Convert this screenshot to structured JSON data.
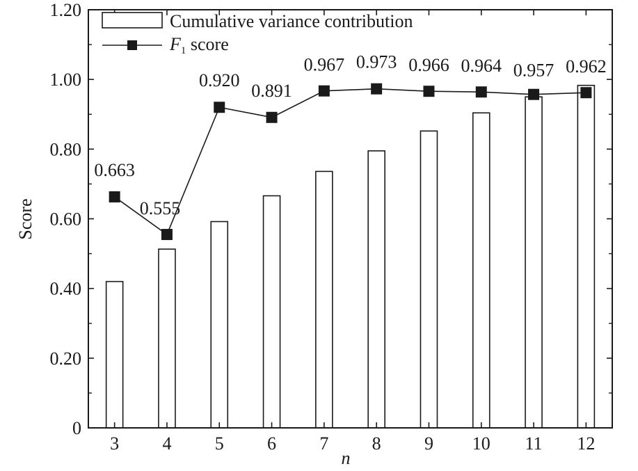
{
  "chart_data": {
    "type": "bar",
    "xlabel": "n",
    "ylabel": "Score",
    "ylim": [
      0,
      1.2
    ],
    "yticks": [
      "0",
      "0.20",
      "0.40",
      "0.60",
      "0.80",
      "1.00",
      "1.20"
    ],
    "ytick_values": [
      0,
      0.2,
      0.4,
      0.6,
      0.8,
      1.0,
      1.2
    ],
    "categories": [
      "3",
      "4",
      "5",
      "6",
      "7",
      "8",
      "9",
      "10",
      "11",
      "12"
    ],
    "grid": false,
    "legend_position": "top-left",
    "series": [
      {
        "name": "Cumulative variance contribution",
        "type": "bar",
        "values": [
          0.42,
          0.513,
          0.592,
          0.666,
          0.736,
          0.795,
          0.852,
          0.904,
          0.95,
          0.983
        ]
      },
      {
        "name": "F1 score",
        "legend_main": "F",
        "legend_sub": "1",
        "legend_rest": " score",
        "type": "line",
        "marker": "square",
        "values": [
          0.663,
          0.555,
          0.92,
          0.891,
          0.967,
          0.973,
          0.966,
          0.964,
          0.957,
          0.962
        ],
        "labels": [
          "0.663",
          "0.555",
          "0.920",
          "0.891",
          "0.967",
          "0.973",
          "0.966",
          "0.964",
          "0.957",
          "0.962"
        ]
      }
    ],
    "colors": {
      "bar_fill": "#ffffff",
      "stroke": "#1a1a1a",
      "marker": "#1a1a1a"
    }
  }
}
